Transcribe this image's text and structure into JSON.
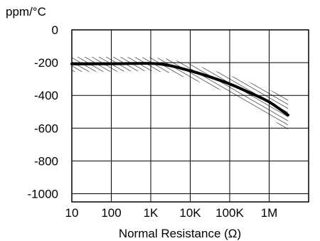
{
  "chart_data": {
    "type": "line",
    "title": "",
    "ylabel": "ppm/°C",
    "xlabel": "Normal Resistance (Ω)",
    "x_scale": "log",
    "xlim": [
      10,
      10000000
    ],
    "ylim": [
      -1050,
      0
    ],
    "x_ticks": [
      {
        "value": 10,
        "label": "10"
      },
      {
        "value": 100,
        "label": "100"
      },
      {
        "value": 1000,
        "label": "1K"
      },
      {
        "value": 10000,
        "label": "10K"
      },
      {
        "value": 100000,
        "label": "100K"
      },
      {
        "value": 1000000,
        "label": "1M"
      }
    ],
    "y_ticks": [
      {
        "value": 0,
        "label": "0"
      },
      {
        "value": -200,
        "label": "-200"
      },
      {
        "value": -400,
        "label": "-400"
      },
      {
        "value": -600,
        "label": "-600"
      },
      {
        "value": -800,
        "label": "-800"
      },
      {
        "value": -1000,
        "label": "-1000"
      }
    ],
    "grid": true,
    "series": [
      {
        "x": [
          10,
          100,
          1000,
          3000,
          10000,
          30000,
          100000,
          300000,
          1000000,
          3000000
        ],
        "y": [
          -208,
          -207,
          -205,
          -218,
          -250,
          -285,
          -330,
          -380,
          -440,
          -520
        ]
      }
    ],
    "band": {
      "x": [
        10,
        100,
        1000,
        3000,
        10000,
        30000,
        100000,
        300000,
        1000000,
        3000000
      ],
      "upper": [
        -165,
        -165,
        -168,
        -178,
        -208,
        -240,
        -278,
        -318,
        -365,
        -420
      ],
      "lower": [
        -255,
        -255,
        -250,
        -262,
        -300,
        -338,
        -390,
        -455,
        -530,
        -620
      ]
    },
    "colors": {
      "line": "#000000",
      "hatch": "#000000",
      "grid": "#000000"
    }
  }
}
